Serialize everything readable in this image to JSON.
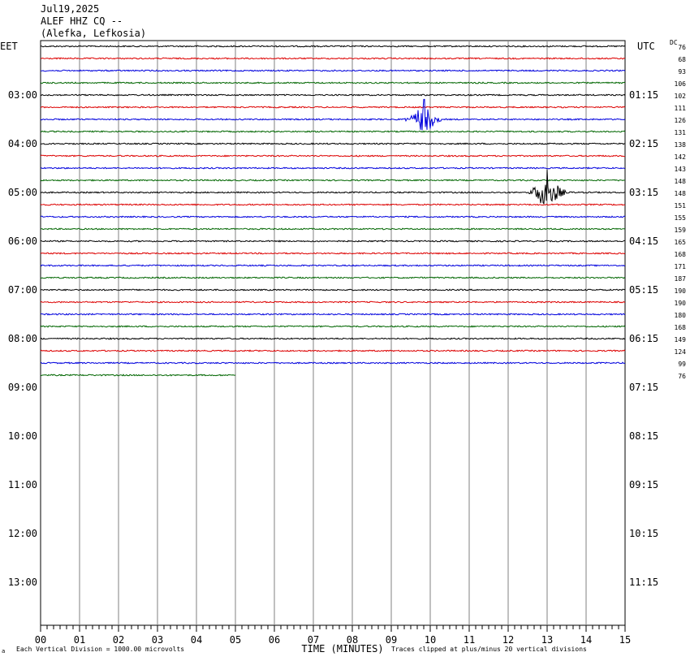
{
  "header": {
    "date": "Jul19,2025",
    "station": "ALEF HHZ CQ --",
    "location": "(Alefka, Lefkosia)"
  },
  "left_tz_label": "EET",
  "right_tz_label": "UTC",
  "dc_label": "DC",
  "footer": {
    "left_note": "Each Vertical Division = 1000.00 microvolts",
    "xlabel": "TIME (MINUTES)",
    "right_note": "Traces clipped at plus/minus 20 vertical divisions",
    "corner_mark": "a"
  },
  "colors": {
    "black": "#000000",
    "red": "#dd0000",
    "blue": "#0000dd",
    "green": "#006600",
    "grid": "#808080"
  },
  "chart_data": {
    "type": "line",
    "title": "ALEF HHZ CQ --",
    "xlabel": "TIME (MINUTES)",
    "xlim": [
      0,
      15
    ],
    "x_ticks": [
      "00",
      "01",
      "02",
      "03",
      "04",
      "05",
      "06",
      "07",
      "08",
      "09",
      "10",
      "11",
      "12",
      "13",
      "14",
      "15"
    ],
    "minutes_per_line": 15,
    "line_color_cycle": [
      "black",
      "red",
      "blue",
      "green"
    ],
    "left_hour_labels": [
      "03:00",
      "04:00",
      "05:00",
      "06:00",
      "07:00",
      "08:00",
      "09:00",
      "10:00",
      "11:00",
      "12:00",
      "13:00"
    ],
    "right_hour_labels": [
      "01:15",
      "02:15",
      "03:15",
      "04:15",
      "05:15",
      "06:15",
      "07:15",
      "08:15",
      "09:15",
      "10:15",
      "11:15"
    ],
    "dc_offsets": [
      "76",
      "68",
      "93",
      "106",
      "102",
      "111",
      "126",
      "131",
      "138",
      "142",
      "143",
      "148",
      "148",
      "151",
      "155",
      "159",
      "165",
      "168",
      "171",
      "187",
      "190",
      "190",
      "180",
      "168",
      "149",
      "124",
      "99",
      "76"
    ],
    "total_rows": 48,
    "recorded_rows": 28,
    "last_row_end_minute": 5,
    "events": [
      {
        "row": 6,
        "start_minute": 9.0,
        "peak_minute": 9.85,
        "end_minute": 10.3,
        "peak_amplitude_divisions": 3.5
      },
      {
        "row": 12,
        "start_minute": 12.5,
        "peak_minute": 13.0,
        "end_minute": 13.9,
        "peak_amplitude_divisions": 4.0
      }
    ]
  }
}
